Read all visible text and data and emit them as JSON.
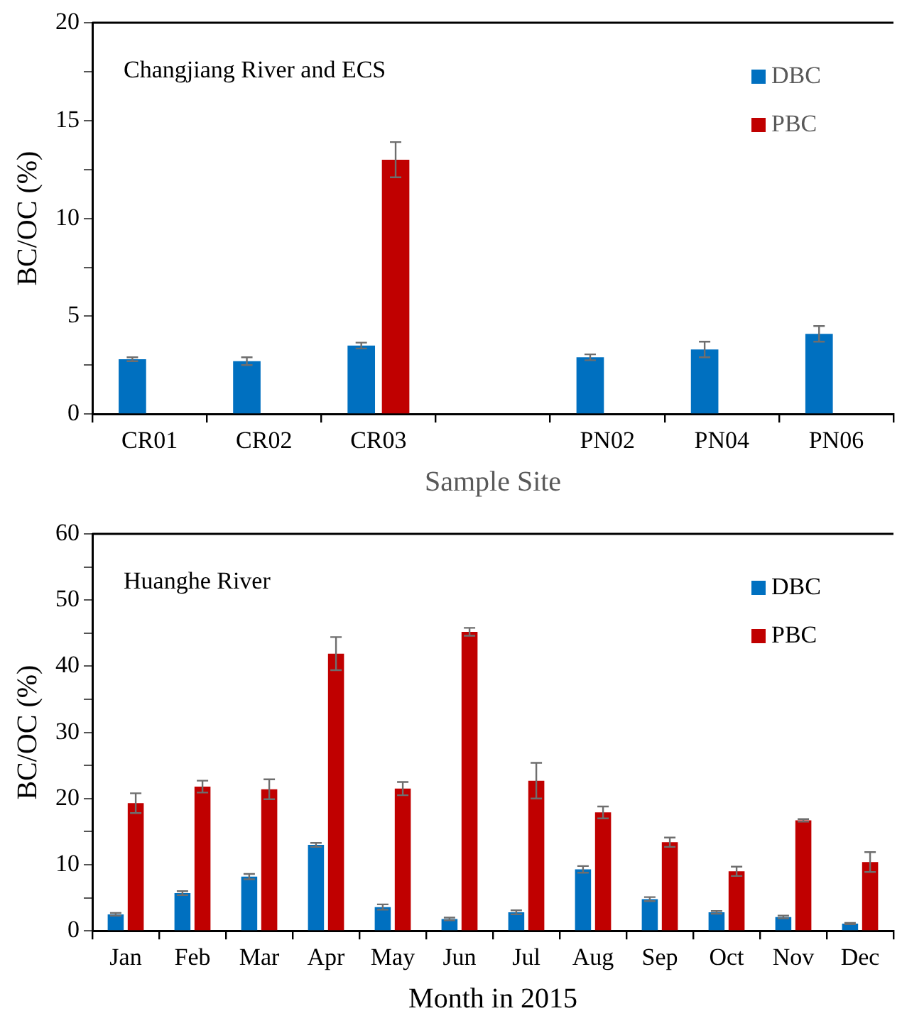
{
  "chart_data": [
    {
      "type": "bar",
      "xlabel": "Sample Site",
      "ylabel": "BC/OC (%)",
      "annotations": [
        "Changjiang River and ECS"
      ],
      "categories": [
        "CR01",
        "CR02",
        "CR03",
        null,
        "PN02",
        "PN04",
        "PN06"
      ],
      "series": [
        {
          "name": "DBC",
          "color": "#0070c0",
          "values": [
            2.8,
            2.7,
            3.5,
            null,
            2.9,
            3.3,
            4.1
          ],
          "errors": [
            0.1,
            0.2,
            0.15,
            null,
            0.15,
            0.4,
            0.4
          ]
        },
        {
          "name": "PBC",
          "color": "#c00000",
          "values": [
            null,
            null,
            13.0,
            null,
            null,
            null,
            null
          ],
          "errors": [
            null,
            null,
            0.9,
            null,
            null,
            null,
            null
          ]
        }
      ],
      "ylim": [
        0,
        20
      ],
      "yticks": [
        0,
        {
          "value": 2.5,
          "label": null
        },
        5,
        {
          "value": 7.5,
          "label": null
        },
        10,
        {
          "value": 12.5,
          "label": null
        },
        15,
        {
          "value": 17.5,
          "label": null
        },
        20
      ],
      "grid": false,
      "legend": "top right"
    },
    {
      "type": "bar",
      "xlabel": "Month in 2015",
      "ylabel": "BC/OC (%)",
      "annotations": [
        "Huanghe River"
      ],
      "categories": [
        "Jan",
        "Feb",
        "Mar",
        "Apr",
        "May",
        "Jun",
        "Jul",
        "Aug",
        "Sep",
        "Oct",
        "Nov",
        "Dec"
      ],
      "series": [
        {
          "name": "DBC",
          "color": "#0070c0",
          "values": [
            2.5,
            5.7,
            8.2,
            13.0,
            3.6,
            1.8,
            2.8,
            9.3,
            4.8,
            2.8,
            2.1,
            1.1
          ],
          "errors": [
            0.2,
            0.3,
            0.4,
            0.3,
            0.4,
            0.2,
            0.3,
            0.5,
            0.3,
            0.2,
            0.2,
            0.1
          ]
        },
        {
          "name": "PBC",
          "color": "#c00000",
          "values": [
            19.3,
            21.8,
            21.4,
            41.9,
            21.5,
            45.2,
            22.7,
            17.9,
            13.4,
            9.0,
            16.7,
            10.4
          ],
          "errors": [
            1.5,
            0.9,
            1.5,
            2.5,
            1.0,
            0.6,
            2.7,
            0.9,
            0.7,
            0.7,
            0.2,
            1.5
          ]
        }
      ],
      "ylim": [
        0,
        60
      ],
      "yticks": [
        0,
        {
          "value": 5,
          "label": null
        },
        10,
        {
          "value": 15,
          "label": null
        },
        20,
        {
          "value": 25,
          "label": null
        },
        30,
        {
          "value": 35,
          "label": null
        },
        40,
        {
          "value": 45,
          "label": null
        },
        50,
        {
          "value": 55,
          "label": null
        },
        60
      ],
      "grid": false,
      "legend": "top right"
    }
  ]
}
